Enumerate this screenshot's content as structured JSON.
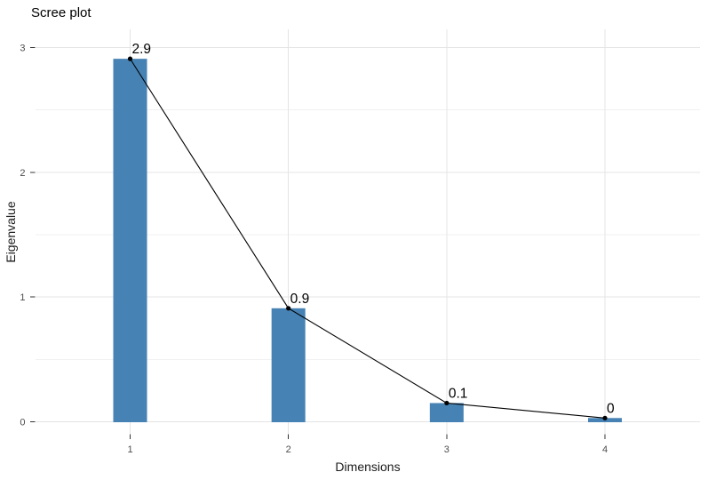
{
  "chart_data": {
    "type": "bar",
    "overlay": "line+points",
    "title": "Scree plot",
    "xlabel": "Dimensions",
    "ylabel": "Eigenvalue",
    "categories": [
      "1",
      "2",
      "3",
      "4"
    ],
    "values": [
      2.91,
      0.91,
      0.15,
      0.03
    ],
    "point_labels": [
      "2.9",
      "0.9",
      "0.1",
      "0"
    ],
    "y_ticks": [
      0,
      1,
      2,
      3
    ],
    "y_minor_ticks": [
      0.5,
      1.5,
      2.5
    ],
    "ylim": [
      0,
      3.24
    ],
    "grid": "major+minor horizontal, major vertical",
    "legend": "none",
    "colors": {
      "bar": "#4682B4",
      "line": "#000000",
      "point": "#000000",
      "grid_major": "#e4e4e4",
      "grid_minor": "#f1f1f1",
      "axis_tick": "#333333",
      "tick_label": "#4d4d4d",
      "axis_title": "#1a1a1a",
      "title": "#000000",
      "background": "#ffffff"
    }
  }
}
